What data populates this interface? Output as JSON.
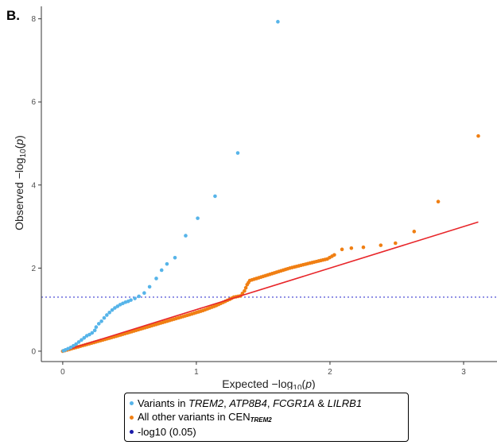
{
  "panel_label": "B.",
  "chart_data": {
    "type": "scatter",
    "title": "",
    "xlabel": "Expected −log10(p)",
    "ylabel": "Observed −log10(p)",
    "xlim": [
      -0.16,
      3.25
    ],
    "ylim": [
      -0.25,
      8.3
    ],
    "x_ticks": [
      0,
      1,
      2,
      3
    ],
    "y_ticks": [
      0,
      2,
      4,
      6,
      8
    ],
    "grid": false,
    "legend_position": "bottom",
    "colors": {
      "trem2": "#56B4E9",
      "other": "#F07F13",
      "reference_line": "#E8262A",
      "threshold_line": "#3B3BD0"
    },
    "series": [
      {
        "name_parts": [
          "Variants in ",
          "TREM2",
          ", ",
          "ATP8B4",
          ", ",
          "FCGR1A",
          " & ",
          "LILRB1"
        ],
        "kind": "points",
        "points": [
          [
            0.005,
            0.01
          ],
          [
            0.02,
            0.03
          ],
          [
            0.04,
            0.06
          ],
          [
            0.06,
            0.09
          ],
          [
            0.08,
            0.13
          ],
          [
            0.1,
            0.17
          ],
          [
            0.12,
            0.22
          ],
          [
            0.14,
            0.27
          ],
          [
            0.16,
            0.32
          ],
          [
            0.18,
            0.37
          ],
          [
            0.2,
            0.4
          ],
          [
            0.22,
            0.44
          ],
          [
            0.24,
            0.5
          ],
          [
            0.25,
            0.58
          ],
          [
            0.27,
            0.66
          ],
          [
            0.29,
            0.72
          ],
          [
            0.31,
            0.8
          ],
          [
            0.33,
            0.87
          ],
          [
            0.35,
            0.93
          ],
          [
            0.37,
            0.99
          ],
          [
            0.39,
            1.04
          ],
          [
            0.41,
            1.08
          ],
          [
            0.43,
            1.12
          ],
          [
            0.45,
            1.15
          ],
          [
            0.47,
            1.18
          ],
          [
            0.49,
            1.2
          ],
          [
            0.51,
            1.23
          ],
          [
            0.54,
            1.27
          ],
          [
            0.57,
            1.32
          ],
          [
            0.61,
            1.4
          ],
          [
            0.65,
            1.55
          ],
          [
            0.7,
            1.75
          ],
          [
            0.74,
            1.95
          ],
          [
            0.78,
            2.1
          ],
          [
            0.84,
            2.25
          ],
          [
            0.92,
            2.78
          ],
          [
            1.01,
            3.2
          ],
          [
            1.14,
            3.73
          ],
          [
            1.31,
            4.77
          ],
          [
            1.61,
            7.93
          ]
        ]
      },
      {
        "name_parts": [
          "All other variants in CEN",
          "TREM2"
        ],
        "kind": "points",
        "points": [
          [
            2.09,
            2.45
          ],
          [
            2.16,
            2.48
          ],
          [
            2.25,
            2.5
          ],
          [
            2.38,
            2.55
          ],
          [
            2.49,
            2.6
          ],
          [
            2.63,
            2.88
          ],
          [
            2.81,
            3.6
          ],
          [
            3.11,
            5.18
          ]
        ],
        "dense_curve": [
          [
            0.0,
            0.0
          ],
          [
            0.2,
            0.18
          ],
          [
            0.4,
            0.36
          ],
          [
            0.6,
            0.55
          ],
          [
            0.8,
            0.74
          ],
          [
            0.95,
            0.88
          ],
          [
            1.05,
            0.98
          ],
          [
            1.15,
            1.1
          ],
          [
            1.25,
            1.25
          ],
          [
            1.28,
            1.3
          ],
          [
            1.33,
            1.33
          ],
          [
            1.36,
            1.45
          ],
          [
            1.38,
            1.6
          ],
          [
            1.4,
            1.7
          ],
          [
            1.55,
            1.85
          ],
          [
            1.7,
            2.0
          ],
          [
            1.85,
            2.12
          ],
          [
            1.98,
            2.22
          ],
          [
            2.05,
            2.35
          ]
        ]
      },
      {
        "name": "-log10 (0.05)",
        "kind": "hline",
        "y": 1.301
      }
    ],
    "reference_line": {
      "from": [
        0,
        0
      ],
      "to": [
        3.11,
        3.11
      ]
    }
  }
}
